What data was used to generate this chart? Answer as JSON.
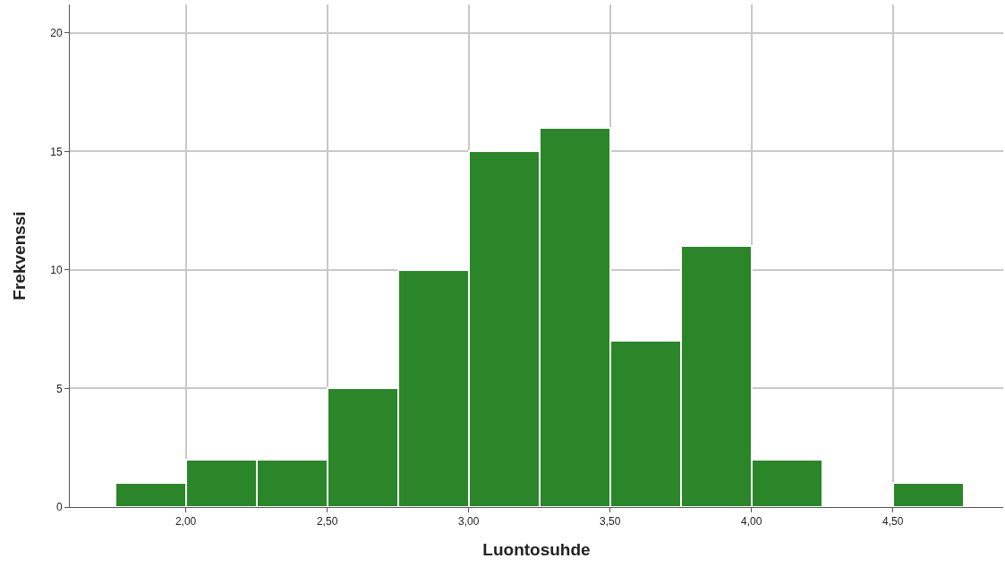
{
  "chart_data": {
    "type": "histogram",
    "xlabel": "Luontosuhde",
    "ylabel": "Frekvenssi",
    "bins": [
      1.75,
      2.0,
      2.25,
      2.5,
      2.75,
      3.0,
      3.25,
      3.5,
      3.75,
      4.0,
      4.25,
      4.5,
      4.75
    ],
    "values": [
      1,
      2,
      2,
      5,
      10,
      15,
      16,
      7,
      11,
      2,
      0,
      1
    ],
    "color": "#2a8629",
    "xlim": [
      1.59,
      4.89
    ],
    "xticks": [
      {
        "value": 2,
        "label": "2,00"
      },
      {
        "value": 2.5,
        "label": "2,50"
      },
      {
        "value": 3,
        "label": "3,00"
      },
      {
        "value": 3.5,
        "label": "3,50"
      },
      {
        "value": 4,
        "label": "4,00"
      },
      {
        "value": 4.5,
        "label": "4,50"
      }
    ],
    "ylim": [
      0,
      21.2
    ],
    "yticks": [
      0,
      5,
      10,
      15,
      20
    ],
    "grid": true
  }
}
